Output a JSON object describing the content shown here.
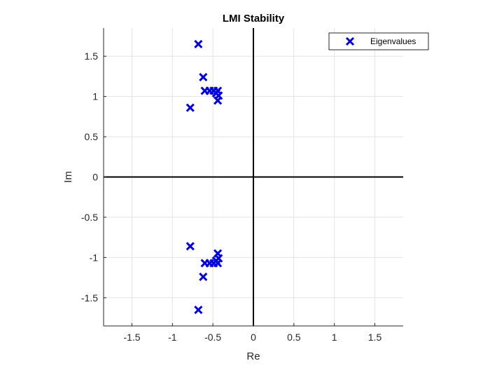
{
  "chart_data": {
    "type": "scatter",
    "title": "LMI Stability",
    "xlabel": "Re",
    "ylabel": "Im",
    "xlim": [
      -1.85,
      1.85
    ],
    "ylim": [
      -1.85,
      1.85
    ],
    "xticks": [
      -1.5,
      -1,
      -0.5,
      0,
      0.5,
      1,
      1.5
    ],
    "xtick_labels": [
      "-1.5",
      "-1",
      "-0.5",
      "0",
      "0.5",
      "1",
      "1.5"
    ],
    "yticks": [
      -1.5,
      -1,
      -0.5,
      0,
      0.5,
      1,
      1.5
    ],
    "ytick_labels": [
      "-1.5",
      "-1",
      "-0.5",
      "0",
      "0.5",
      "1",
      "1.5"
    ],
    "grid": true,
    "legend_position": "top-right",
    "marker": "x",
    "series": [
      {
        "name": "Eigenvalues",
        "color": "#0000e0",
        "points": [
          {
            "x": -0.68,
            "y": 1.65
          },
          {
            "x": -0.68,
            "y": -1.65
          },
          {
            "x": -0.62,
            "y": 1.24
          },
          {
            "x": -0.62,
            "y": -1.24
          },
          {
            "x": -0.6,
            "y": 1.07
          },
          {
            "x": -0.6,
            "y": -1.07
          },
          {
            "x": -0.54,
            "y": 1.07
          },
          {
            "x": -0.54,
            "y": -1.07
          },
          {
            "x": -0.49,
            "y": 1.07
          },
          {
            "x": -0.49,
            "y": -1.07
          },
          {
            "x": -0.46,
            "y": 1.04
          },
          {
            "x": -0.46,
            "y": -1.04
          },
          {
            "x": -0.44,
            "y": 1.07
          },
          {
            "x": -0.44,
            "y": -1.07
          },
          {
            "x": -0.43,
            "y": 1.01
          },
          {
            "x": -0.43,
            "y": -1.01
          },
          {
            "x": -0.44,
            "y": 0.95
          },
          {
            "x": -0.44,
            "y": -0.95
          },
          {
            "x": -0.78,
            "y": 0.86
          },
          {
            "x": -0.78,
            "y": -0.86
          }
        ]
      }
    ],
    "zero_lines": {
      "x": 0,
      "y": 0
    }
  }
}
